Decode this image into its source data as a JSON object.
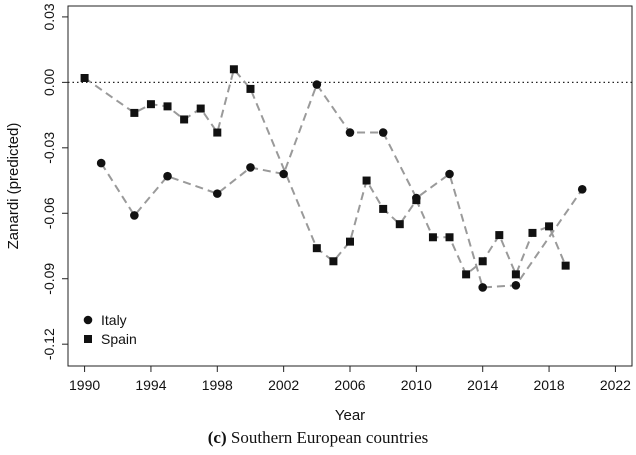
{
  "chart_data": {
    "type": "scatter",
    "xlabel": "Year",
    "ylabel": "Zanardi (predicted)",
    "xlim": [
      1989,
      2023
    ],
    "ylim": [
      -0.13,
      0.035
    ],
    "x_ticks": [
      1990,
      1994,
      1998,
      2002,
      2006,
      2010,
      2014,
      2018,
      2022
    ],
    "y_ticks": [
      0.03,
      0.0,
      -0.03,
      -0.06,
      -0.09,
      -0.12
    ],
    "y_tick_labels": [
      "0.03",
      "0.00",
      "-0.03",
      "-0.06",
      "-0.09",
      "-0.12"
    ],
    "reference_line": {
      "y": 0,
      "style": "dotted"
    },
    "legend_position": "bottom-left",
    "series": [
      {
        "name": "Italy",
        "marker": "circle",
        "line": "dashed",
        "x": [
          1991,
          1993,
          1995,
          1998,
          2000,
          2002,
          2004,
          2006,
          2008,
          2010,
          2012,
          2014,
          2016,
          2020
        ],
        "y": [
          -0.037,
          -0.061,
          -0.043,
          -0.051,
          -0.039,
          -0.042,
          -0.001,
          -0.023,
          -0.023,
          -0.053,
          -0.042,
          -0.094,
          -0.093,
          -0.049
        ]
      },
      {
        "name": "Spain",
        "marker": "square",
        "line": "dashed",
        "x": [
          1990,
          1993,
          1994,
          1995,
          1996,
          1997,
          1998,
          1999,
          2000,
          2004,
          2005,
          2006,
          2007,
          2008,
          2009,
          2010,
          2011,
          2012,
          2013,
          2014,
          2015,
          2016,
          2017,
          2018,
          2019
        ],
        "y": [
          0.002,
          -0.014,
          -0.01,
          -0.011,
          -0.017,
          -0.012,
          -0.023,
          0.006,
          -0.003,
          -0.076,
          -0.082,
          -0.073,
          -0.045,
          -0.058,
          -0.065,
          -0.054,
          -0.071,
          -0.071,
          -0.088,
          -0.082,
          -0.07,
          -0.088,
          -0.069,
          -0.066,
          -0.084
        ]
      }
    ]
  },
  "caption": {
    "label": "(c)",
    "text": "Southern European countries"
  }
}
